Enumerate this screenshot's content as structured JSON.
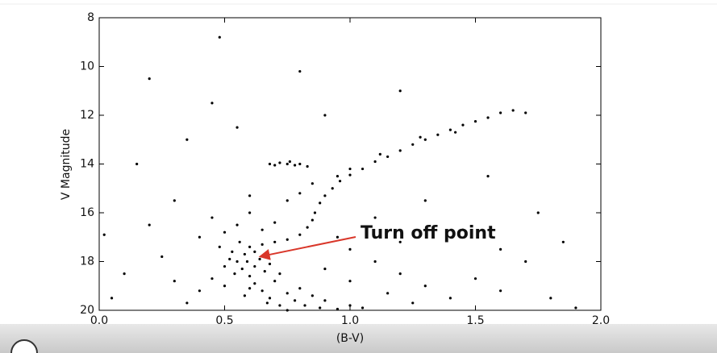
{
  "chart_data": {
    "type": "scatter",
    "xlabel": "(B-V)",
    "ylabel": "V Magnitude",
    "xlim": [
      0,
      2
    ],
    "ylim": [
      20,
      8
    ],
    "xticks": [
      {
        "value": 0,
        "label": "0.0"
      },
      0.5,
      {
        "value": 1,
        "label": "1.0"
      },
      1.5,
      {
        "value": 2,
        "label": "2.0"
      }
    ],
    "yticks": [
      8,
      10,
      12,
      14,
      16,
      18,
      20
    ],
    "color": "#000000",
    "annotation": {
      "text": "Turn off point",
      "x": 0.64,
      "y": 17.8,
      "color": "#d9372a"
    },
    "x": [
      0.55,
      0.57,
      0.6,
      0.62,
      0.65,
      0.68,
      0.72,
      0.75,
      0.52,
      0.5,
      0.58,
      0.62,
      0.54,
      0.66,
      0.7,
      0.6,
      0.75,
      0.78,
      0.82,
      0.88,
      0.95,
      0.67,
      0.58,
      0.5,
      0.45,
      0.48,
      0.56,
      0.6,
      0.64,
      0.68,
      0.72,
      0.8,
      0.85,
      0.9,
      1.0,
      1.05,
      0.62,
      0.59,
      0.53,
      0.65,
      0.7,
      0.75,
      0.8,
      0.83,
      0.85,
      0.86,
      0.88,
      0.9,
      0.93,
      0.96,
      1.0,
      1.05,
      1.1,
      1.15,
      1.2,
      1.25,
      1.3,
      1.35,
      1.4,
      1.45,
      1.5,
      1.55,
      1.6,
      1.65,
      1.7,
      1.12,
      1.28,
      1.42,
      1.0,
      0.95,
      0.68,
      0.72,
      0.75,
      0.78,
      0.8,
      0.83,
      0.7,
      0.76,
      0.5,
      0.45,
      0.55,
      0.6,
      0.4,
      0.65,
      0.7,
      0.75,
      0.8,
      0.85,
      0.6,
      1.0,
      1.1,
      1.2,
      1.3,
      1.4,
      1.5,
      1.6,
      1.7,
      1.8,
      1.9,
      0.1,
      0.2,
      0.05,
      0.3,
      0.25,
      0.35,
      0.15,
      0.2,
      0.45,
      0.8,
      0.9,
      1.2,
      1.55,
      1.3,
      1.1,
      0.95,
      0.35,
      0.55,
      0.48,
      1.75,
      1.85,
      0.02,
      1.2,
      1.45,
      1.6,
      0.9,
      1.0,
      1.15,
      1.25,
      0.4,
      0.3
    ],
    "values": [
      18.0,
      18.3,
      18.6,
      18.9,
      19.2,
      19.5,
      19.8,
      20.0,
      17.9,
      18.2,
      17.7,
      17.6,
      18.5,
      18.4,
      18.8,
      19.1,
      19.3,
      19.6,
      19.8,
      19.9,
      19.95,
      19.7,
      19.4,
      19.0,
      18.7,
      17.4,
      17.2,
      17.4,
      17.9,
      18.1,
      18.5,
      19.1,
      19.4,
      19.6,
      19.8,
      19.9,
      18.2,
      18.0,
      17.6,
      17.3,
      17.2,
      17.1,
      16.9,
      16.6,
      16.3,
      16.0,
      15.6,
      15.3,
      15.0,
      14.7,
      14.45,
      14.2,
      13.9,
      13.7,
      13.45,
      13.2,
      13.0,
      12.8,
      12.6,
      12.4,
      12.25,
      12.1,
      11.9,
      11.8,
      11.9,
      13.6,
      12.9,
      12.7,
      14.2,
      14.5,
      14.0,
      13.95,
      14.0,
      14.05,
      14.0,
      14.1,
      14.05,
      13.9,
      16.8,
      16.2,
      16.5,
      16.0,
      17.0,
      16.7,
      16.4,
      15.5,
      15.2,
      14.8,
      15.3,
      17.5,
      18.0,
      18.5,
      19.0,
      19.5,
      18.7,
      19.2,
      18.0,
      19.5,
      19.9,
      18.5,
      16.5,
      19.5,
      15.5,
      17.8,
      19.7,
      14.0,
      10.5,
      11.5,
      10.2,
      12.0,
      11.0,
      14.5,
      15.5,
      16.2,
      17.0,
      13.0,
      12.5,
      8.8,
      16.0,
      17.2,
      16.9,
      17.2,
      16.7,
      17.5,
      18.3,
      18.8,
      19.3,
      19.7,
      19.2,
      18.8
    ]
  }
}
